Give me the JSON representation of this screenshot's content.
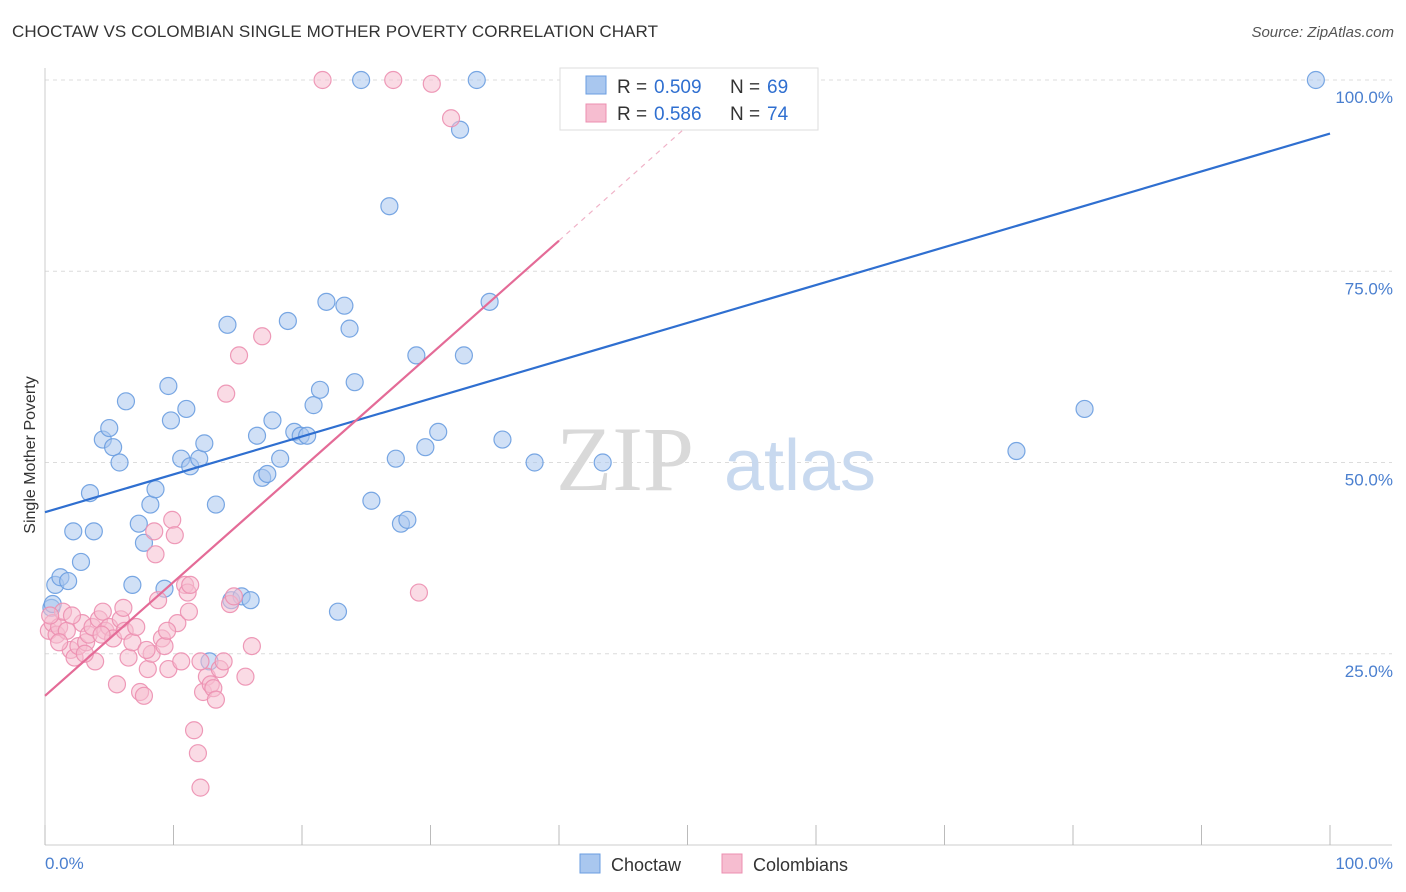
{
  "header": {
    "title": "CHOCTAW VS COLOMBIAN SINGLE MOTHER POVERTY CORRELATION CHART",
    "source": "Source: ZipAtlas.com"
  },
  "watermark": {
    "zip": "ZIP",
    "atlas": "atlas"
  },
  "stats_legend": {
    "rows": [
      {
        "r_label": "R =",
        "r_value": "0.509",
        "n_label": "N =",
        "n_value": "69",
        "color": "#6a9de0"
      },
      {
        "r_label": "R =",
        "r_value": "0.586",
        "n_label": "N =",
        "n_value": "74",
        "color": "#ec8fb0"
      }
    ]
  },
  "chart_data": {
    "type": "scatter",
    "title": "CHOCTAW VS COLOMBIAN SINGLE MOTHER POVERTY CORRELATION CHART",
    "xlabel": "",
    "ylabel": "Single Mother Poverty",
    "xlim": [
      0,
      100
    ],
    "ylim": [
      0,
      100
    ],
    "x_ticks": [
      "0.0%",
      "100.0%"
    ],
    "y_ticks": [
      "25.0%",
      "50.0%",
      "75.0%",
      "100.0%"
    ],
    "y_tick_values": [
      25,
      50,
      75,
      100
    ],
    "grid": true,
    "legend_position": "bottom-center",
    "series": [
      {
        "name": "Choctaw",
        "color": "#6a9de0",
        "fill": "#a9c7ef",
        "trend": {
          "x": [
            0,
            100
          ],
          "y": [
            43.5,
            93
          ]
        },
        "points": [
          [
            0.5,
            31
          ],
          [
            0.8,
            34
          ],
          [
            1.2,
            35
          ],
          [
            1.8,
            34.5
          ],
          [
            2.2,
            41
          ],
          [
            2.8,
            37
          ],
          [
            3.5,
            46
          ],
          [
            3.8,
            41
          ],
          [
            4.5,
            53
          ],
          [
            5,
            54.5
          ],
          [
            5.3,
            52
          ],
          [
            5.8,
            50
          ],
          [
            6.3,
            58
          ],
          [
            6.8,
            34
          ],
          [
            7.3,
            42
          ],
          [
            7.7,
            39.5
          ],
          [
            8.2,
            44.5
          ],
          [
            8.6,
            46.5
          ],
          [
            9.3,
            33.5
          ],
          [
            9.6,
            60
          ],
          [
            9.8,
            55.5
          ],
          [
            10.6,
            50.5
          ],
          [
            11,
            57
          ],
          [
            11.3,
            49.5
          ],
          [
            12,
            50.5
          ],
          [
            12.4,
            52.5
          ],
          [
            12.8,
            24
          ],
          [
            13.3,
            44.5
          ],
          [
            14.2,
            68
          ],
          [
            14.5,
            32
          ],
          [
            15.3,
            32.5
          ],
          [
            16,
            32
          ],
          [
            16.5,
            53.5
          ],
          [
            16.9,
            48
          ],
          [
            17.3,
            48.5
          ],
          [
            17.7,
            55.5
          ],
          [
            18.3,
            50.5
          ],
          [
            18.9,
            68.5
          ],
          [
            19.4,
            54
          ],
          [
            19.9,
            53.5
          ],
          [
            20.4,
            53.5
          ],
          [
            20.9,
            57.5
          ],
          [
            21.4,
            59.5
          ],
          [
            21.9,
            71
          ],
          [
            22.8,
            30.5
          ],
          [
            23.3,
            70.5
          ],
          [
            23.7,
            67.5
          ],
          [
            24.1,
            60.5
          ],
          [
            24.6,
            100
          ],
          [
            25.4,
            45
          ],
          [
            26.8,
            83.5
          ],
          [
            27.3,
            50.5
          ],
          [
            27.7,
            42
          ],
          [
            28.2,
            42.5
          ],
          [
            28.9,
            64
          ],
          [
            29.6,
            52
          ],
          [
            30.6,
            54
          ],
          [
            32.3,
            93.5
          ],
          [
            32.6,
            64
          ],
          [
            33.6,
            100
          ],
          [
            34.6,
            71
          ],
          [
            35.6,
            53
          ],
          [
            38.1,
            50
          ],
          [
            43.4,
            50
          ],
          [
            45.1,
            100
          ],
          [
            75.6,
            51.5
          ],
          [
            80.9,
            57
          ],
          [
            98.9,
            100
          ],
          [
            0.6,
            31.5
          ]
        ]
      },
      {
        "name": "Colombians",
        "color": "#ec8fb0",
        "fill": "#f6bdd0",
        "trend": {
          "x": [
            0,
            40
          ],
          "y": [
            19.5,
            79
          ]
        },
        "trend_dashed": {
          "x": [
            40,
            51
          ],
          "y": [
            79,
            95.5
          ]
        },
        "points": [
          [
            0.3,
            28
          ],
          [
            0.6,
            29
          ],
          [
            0.9,
            27.5
          ],
          [
            1.1,
            28.5
          ],
          [
            1.4,
            30.5
          ],
          [
            1.7,
            28
          ],
          [
            2,
            25.5
          ],
          [
            2.3,
            24.5
          ],
          [
            2.6,
            26
          ],
          [
            2.9,
            29
          ],
          [
            3.2,
            26.5
          ],
          [
            3.4,
            27.5
          ],
          [
            3.7,
            28.5
          ],
          [
            3.9,
            24
          ],
          [
            4.2,
            29.5
          ],
          [
            4.5,
            30.5
          ],
          [
            4.7,
            28
          ],
          [
            5,
            28.5
          ],
          [
            5.3,
            27
          ],
          [
            5.6,
            21
          ],
          [
            5.9,
            29.5
          ],
          [
            6.2,
            28
          ],
          [
            6.5,
            24.5
          ],
          [
            6.8,
            26.5
          ],
          [
            7.1,
            28.5
          ],
          [
            7.4,
            20
          ],
          [
            7.7,
            19.5
          ],
          [
            8,
            23
          ],
          [
            8.3,
            25
          ],
          [
            8.5,
            41
          ],
          [
            8.8,
            32
          ],
          [
            8.6,
            38
          ],
          [
            9.1,
            27
          ],
          [
            9.3,
            26
          ],
          [
            9.6,
            23
          ],
          [
            9.9,
            42.5
          ],
          [
            10.1,
            40.5
          ],
          [
            10.3,
            29
          ],
          [
            10.6,
            24
          ],
          [
            10.9,
            34
          ],
          [
            11.1,
            33
          ],
          [
            11.3,
            34
          ],
          [
            11.6,
            15
          ],
          [
            11.9,
            12
          ],
          [
            12.1,
            7.5
          ],
          [
            12.3,
            20
          ],
          [
            12.6,
            22
          ],
          [
            12.9,
            21
          ],
          [
            13.1,
            20.5
          ],
          [
            13.3,
            19
          ],
          [
            13.6,
            23
          ],
          [
            13.9,
            24
          ],
          [
            14.1,
            59
          ],
          [
            14.4,
            31.5
          ],
          [
            14.7,
            32.5
          ],
          [
            15.1,
            64
          ],
          [
            15.6,
            22
          ],
          [
            16.1,
            26
          ],
          [
            16.9,
            66.5
          ],
          [
            21.6,
            100
          ],
          [
            27.1,
            100
          ],
          [
            29.1,
            33
          ],
          [
            30.1,
            99.5
          ],
          [
            31.6,
            95
          ],
          [
            2.1,
            30
          ],
          [
            4.4,
            27.5
          ],
          [
            6.1,
            31
          ],
          [
            7.9,
            25.5
          ],
          [
            12.1,
            24
          ],
          [
            0.4,
            30
          ],
          [
            1.1,
            26.5
          ],
          [
            3.1,
            25
          ],
          [
            9.5,
            28
          ],
          [
            11.2,
            30.5
          ]
        ]
      }
    ]
  },
  "bottom_legend": {
    "items": [
      {
        "label": "Choctaw",
        "color": "#6a9de0",
        "fill": "#a9c7ef"
      },
      {
        "label": "Colombians",
        "color": "#ec8fb0",
        "fill": "#f6bdd0"
      }
    ]
  }
}
